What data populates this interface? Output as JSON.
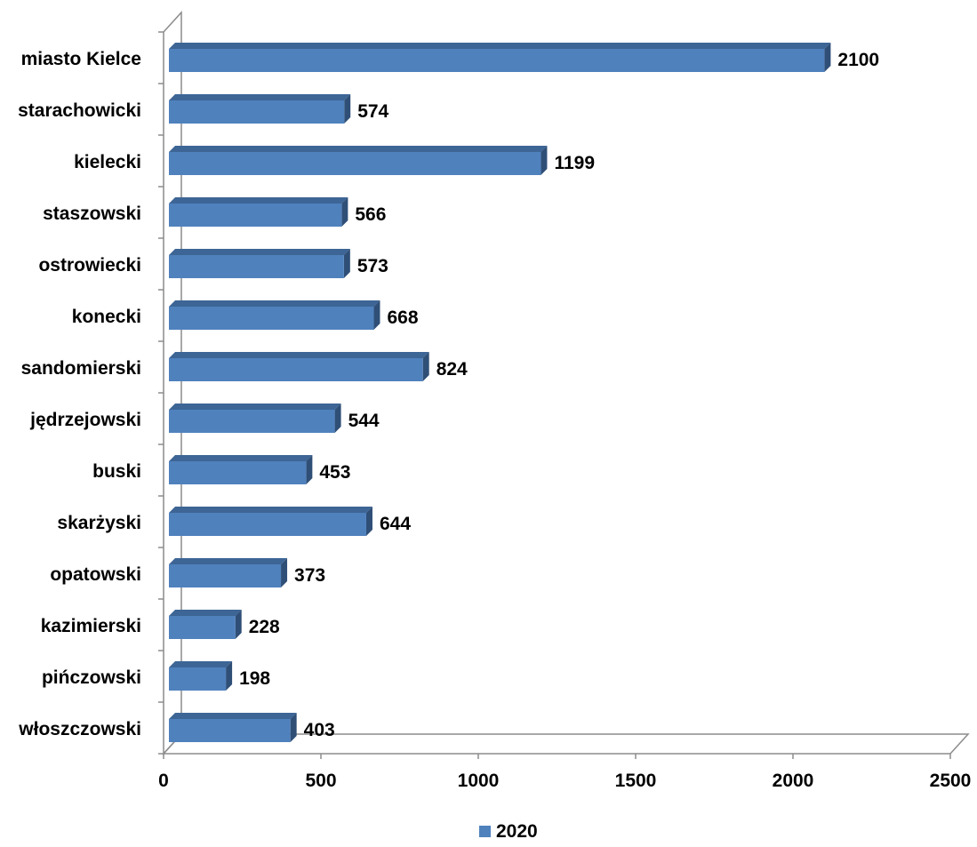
{
  "chart_data": {
    "type": "bar",
    "orientation": "horizontal",
    "style": "3d",
    "categories": [
      "miasto Kielce",
      "starachowicki",
      "kielecki",
      "staszowski",
      "ostrowiecki",
      "konecki",
      "sandomierski",
      "jędrzejowski",
      "buski",
      "skarżyski",
      "opatowski",
      "kazimierski",
      "pińczowski",
      "włoszczowski"
    ],
    "series": [
      {
        "name": "2020",
        "values": [
          2100,
          574,
          1199,
          566,
          573,
          668,
          824,
          544,
          453,
          644,
          373,
          228,
          198,
          403
        ],
        "color": "#4f81bd"
      }
    ],
    "xlim": [
      0,
      2500
    ],
    "xticks": [
      0,
      500,
      1000,
      1500,
      2000,
      2500
    ],
    "data_labels": true,
    "grid": false,
    "legend": "bottom"
  }
}
